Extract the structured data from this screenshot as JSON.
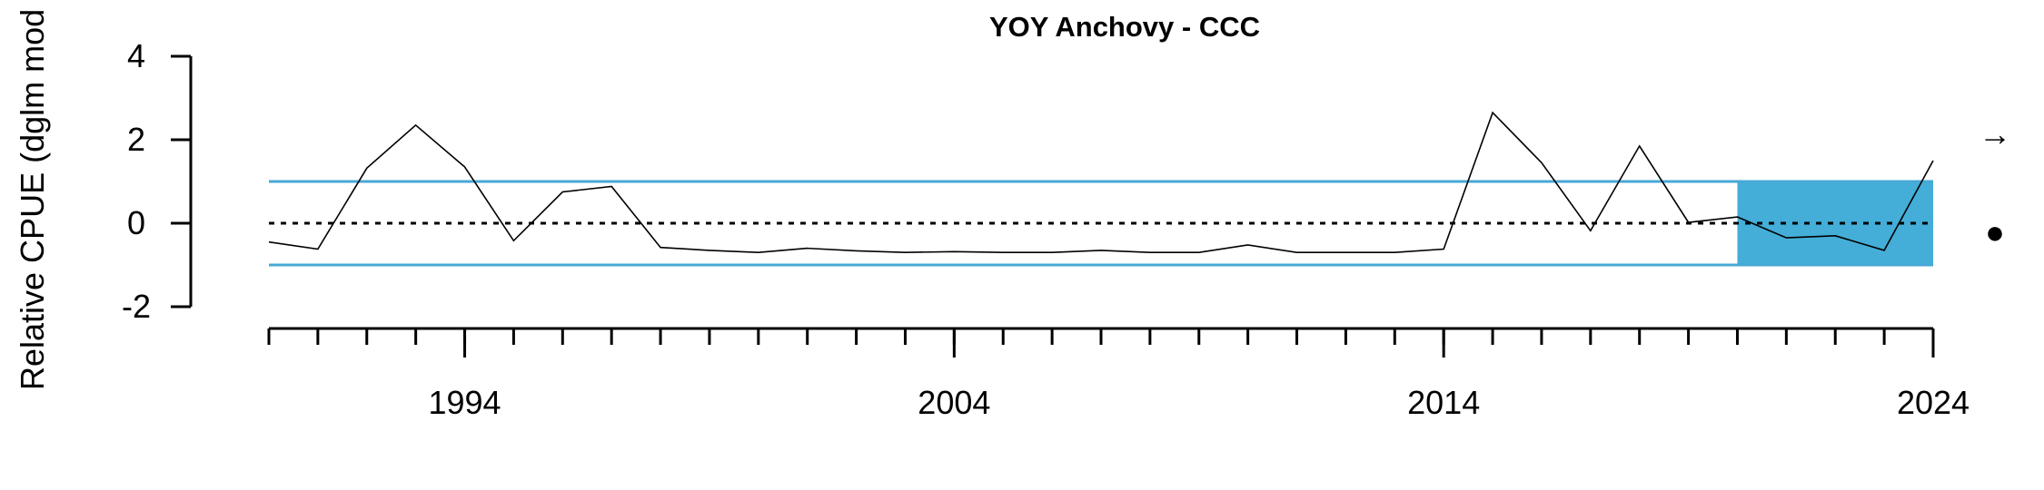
{
  "chart_data": {
    "type": "line",
    "title": "YOY Anchovy - CCC",
    "ylabel": "Relative CPUE (dglm mod",
    "xlabel": "",
    "ylim": [
      -2,
      4
    ],
    "yticks": [
      "-2",
      "0",
      "2",
      "4"
    ],
    "xlim": [
      1990,
      2024
    ],
    "xticks_labeled": [
      "1994",
      "2004",
      "2014",
      "2024"
    ],
    "x_minor_ticks": [
      1990,
      1991,
      1992,
      1993,
      1994,
      1995,
      1996,
      1997,
      1998,
      1999,
      2000,
      2001,
      2002,
      2003,
      2004,
      2005,
      2006,
      2007,
      2008,
      2009,
      2010,
      2011,
      2012,
      2013,
      2014,
      2015,
      2016,
      2017,
      2018,
      2019,
      2020,
      2021,
      2022,
      2023,
      2024
    ],
    "x": [
      1990,
      1991,
      1992,
      1993,
      1994,
      1995,
      1996,
      1997,
      1998,
      1999,
      2000,
      2001,
      2002,
      2003,
      2004,
      2005,
      2006,
      2007,
      2008,
      2009,
      2010,
      2011,
      2012,
      2013,
      2014,
      2015,
      2016,
      2017,
      2018,
      2019,
      2020,
      2021,
      2022,
      2023,
      2024
    ],
    "values": [
      -0.45,
      -0.62,
      1.32,
      2.35,
      1.35,
      -0.42,
      0.75,
      0.88,
      -0.58,
      -0.65,
      -0.7,
      -0.6,
      -0.66,
      -0.7,
      -0.68,
      -0.7,
      -0.7,
      -0.65,
      -0.7,
      -0.7,
      -0.52,
      -0.7,
      -0.7,
      -0.7,
      -0.62,
      2.65,
      1.45,
      -0.18,
      1.85,
      0.02,
      0.15,
      -0.35,
      -0.3,
      -0.65,
      1.5
    ],
    "mean": 0,
    "upper_sd": 1.0,
    "lower_sd": -1.0,
    "highlight_range": [
      2020,
      2024
    ],
    "colors": {
      "reference": "#47a9d5",
      "highlight": "#44aed8",
      "series": "#000000"
    },
    "trend_symbol": "→",
    "status_symbol": "●",
    "grid": false,
    "legend": "none"
  }
}
